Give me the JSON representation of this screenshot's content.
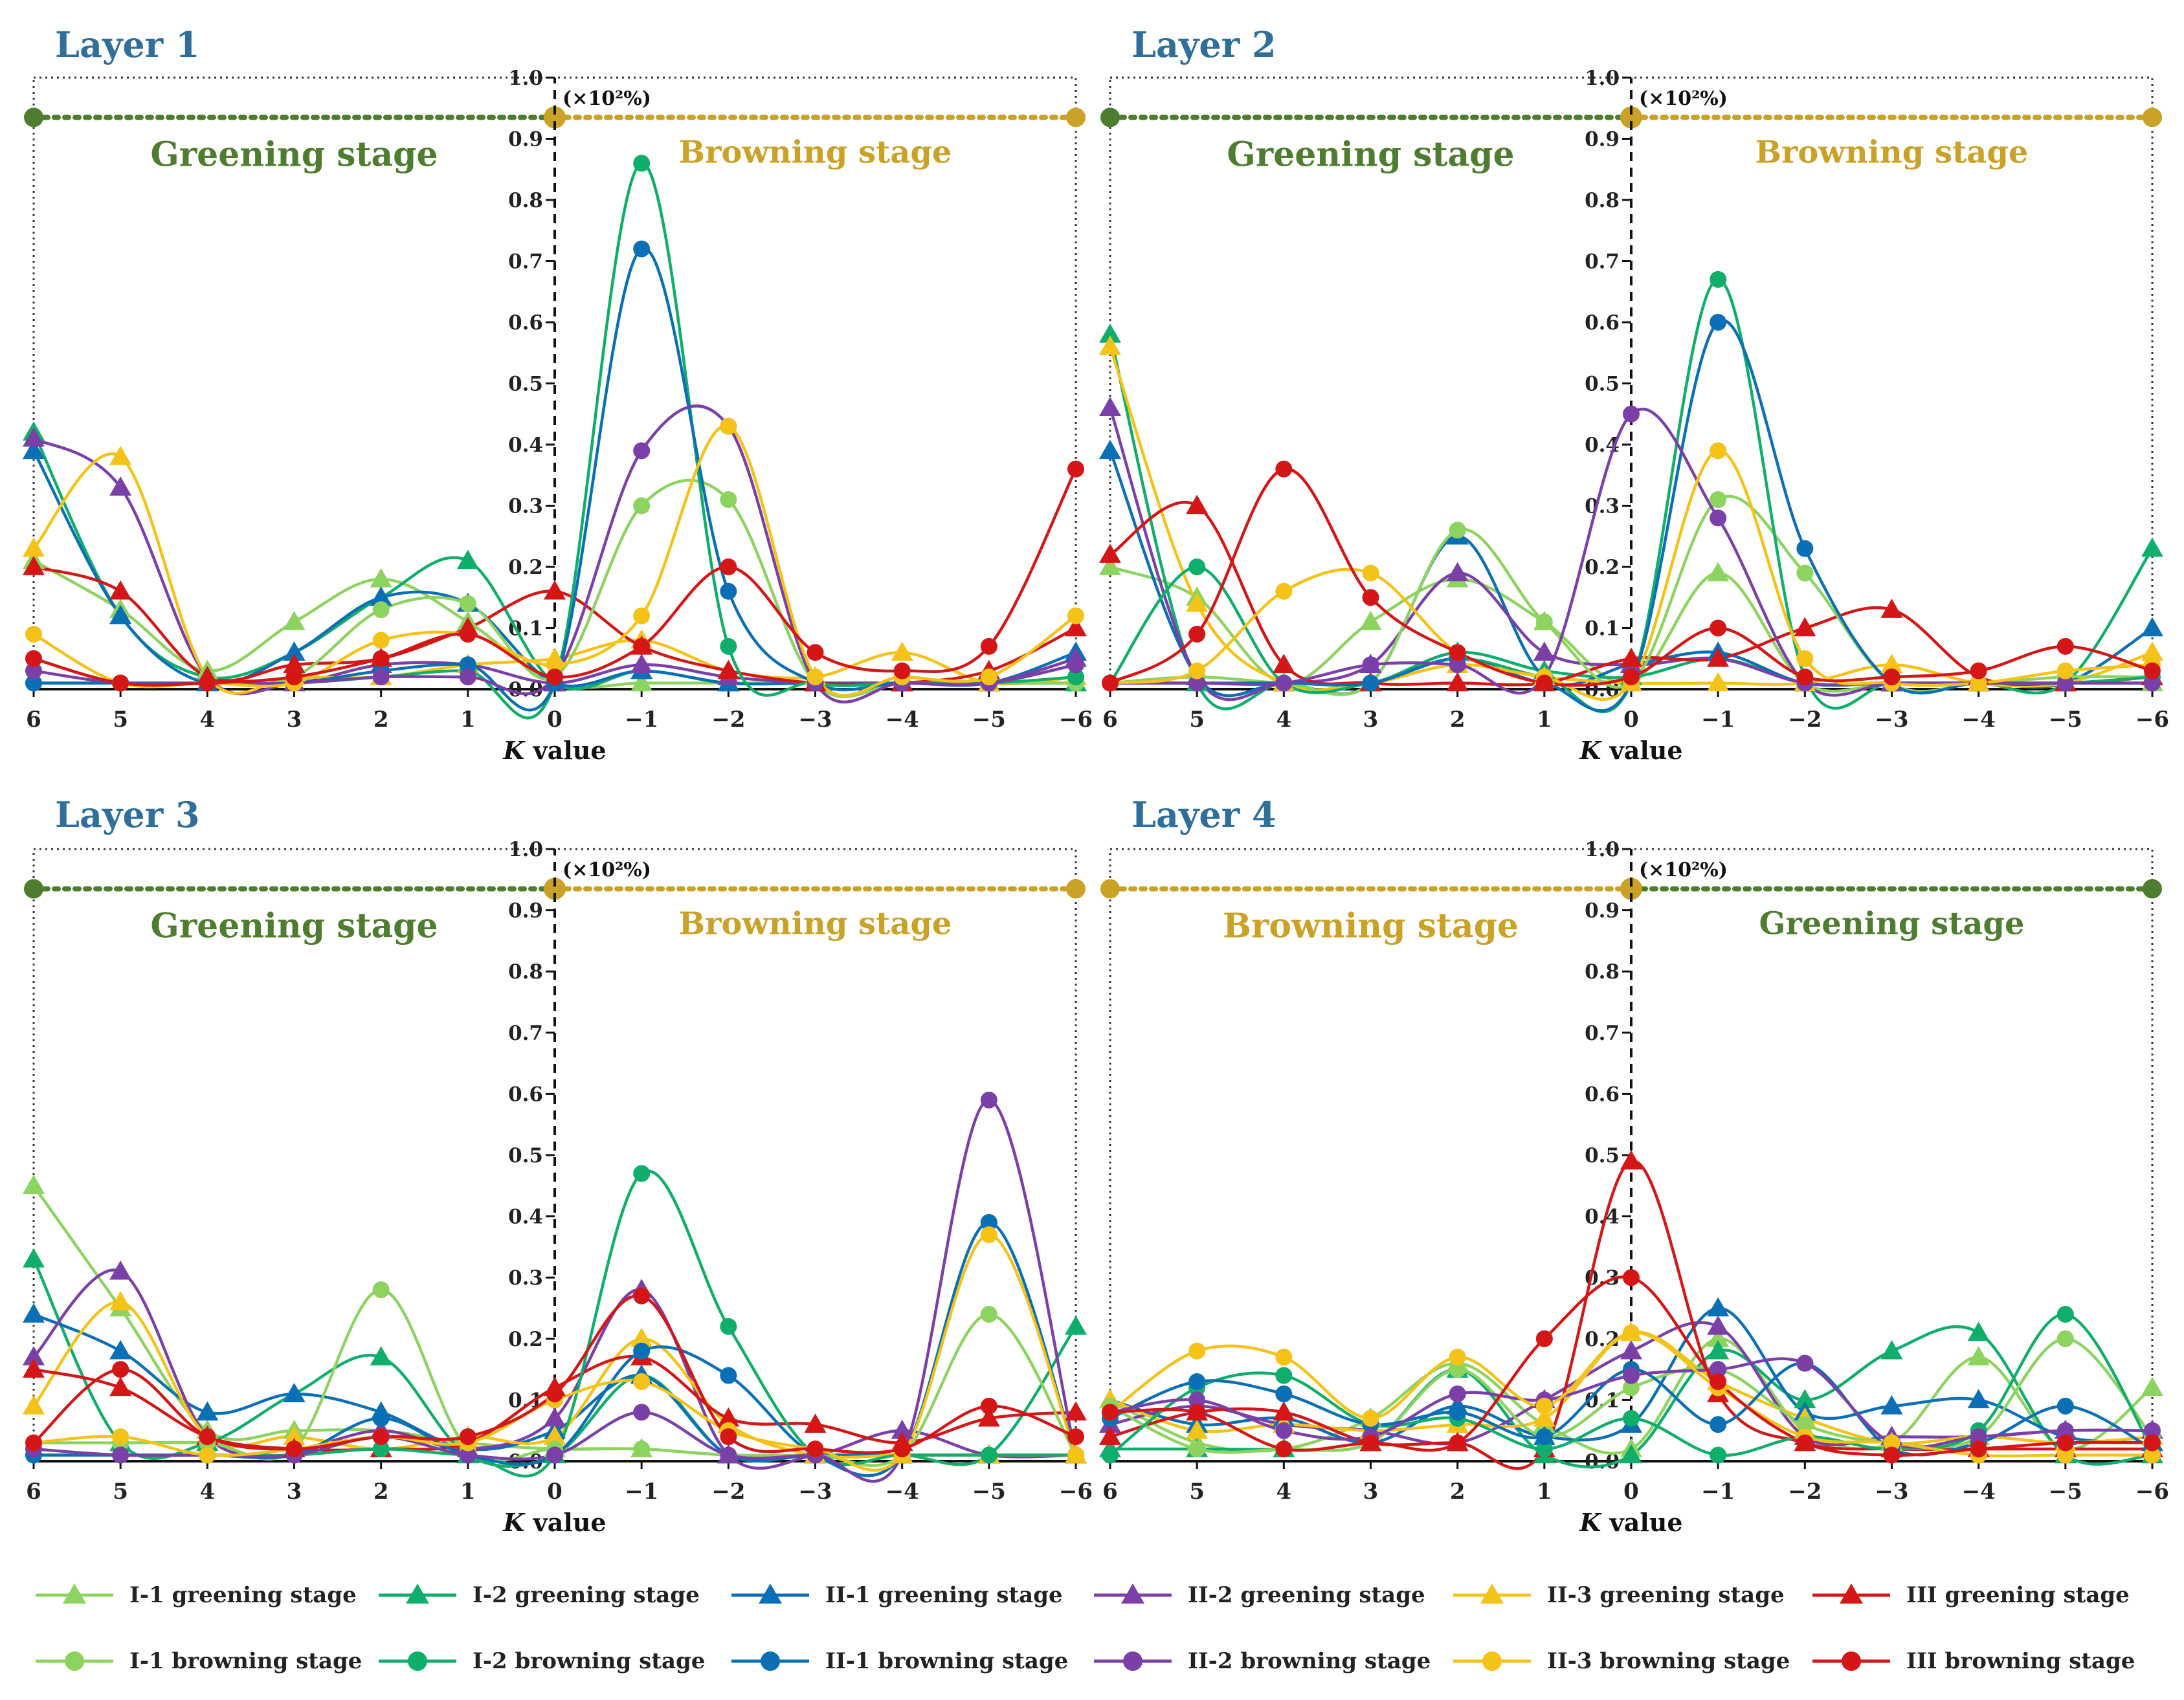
{
  "chart_data": {
    "type": "line",
    "xlabel": "K value",
    "x_ticks": [
      "6",
      "5",
      "4",
      "3",
      "2",
      "1",
      "0",
      "−1",
      "−2",
      "−3",
      "−4",
      "−5",
      "−6"
    ],
    "x_values": [
      6,
      5,
      4,
      3,
      2,
      1,
      0,
      -1,
      -2,
      -3,
      -4,
      -5,
      -6
    ],
    "y_ticks": [
      "0.0",
      "0.1",
      "0.2",
      "0.3",
      "0.4",
      "0.5",
      "0.6",
      "0.7",
      "0.8",
      "0.9",
      "1.0"
    ],
    "ylim": [
      0,
      1.0
    ],
    "y_unit": "(×10²%)",
    "series_style": [
      {
        "key": "I1g",
        "name": "I-1 greening stage",
        "color": "#8dd35f",
        "marker": "triangle"
      },
      {
        "key": "I2g",
        "name": "I-2 greening stage",
        "color": "#0fae6b",
        "marker": "triangle"
      },
      {
        "key": "II1g",
        "name": "II-1 greening stage",
        "color": "#0a6fb5",
        "marker": "triangle"
      },
      {
        "key": "II2g",
        "name": "II-2 greening stage",
        "color": "#7b3fa8",
        "marker": "triangle"
      },
      {
        "key": "II3g",
        "name": "II-3 greening stage",
        "color": "#f5c218",
        "marker": "triangle"
      },
      {
        "key": "IIIg",
        "name": "III greening stage",
        "color": "#d41616",
        "marker": "triangle"
      },
      {
        "key": "I1b",
        "name": "I-1 browning stage",
        "color": "#8dd35f",
        "marker": "circle"
      },
      {
        "key": "I2b",
        "name": "I-2 browning stage",
        "color": "#0fae6b",
        "marker": "circle"
      },
      {
        "key": "II1b",
        "name": "II-1 browning stage",
        "color": "#0a6fb5",
        "marker": "circle"
      },
      {
        "key": "II2b",
        "name": "II-2 browning stage",
        "color": "#7b3fa8",
        "marker": "circle"
      },
      {
        "key": "II3b",
        "name": "II-3 browning stage",
        "color": "#f5c218",
        "marker": "circle"
      },
      {
        "key": "IIIb",
        "name": "III browning stage",
        "color": "#d41616",
        "marker": "circle"
      }
    ],
    "panels": [
      {
        "title": "Layer 1",
        "left_stage": "Greening stage",
        "right_stage": "Browning stage",
        "left_color": "#4e7d30",
        "right_color": "#c9a227",
        "series": {
          "I1g": [
            0.21,
            0.13,
            0.03,
            0.11,
            0.18,
            0.11,
            0.01,
            0.01,
            0.01,
            0.01,
            0.01,
            0.01,
            0.01
          ],
          "I2g": [
            0.42,
            0.12,
            0.02,
            0.06,
            0.15,
            0.21,
            0.01,
            0.03,
            0.01,
            0.01,
            0.01,
            0.01,
            0.01
          ],
          "II1g": [
            0.39,
            0.12,
            0.01,
            0.06,
            0.15,
            0.14,
            0.01,
            0.03,
            0.01,
            0.01,
            0.01,
            0.01,
            0.06
          ],
          "II2g": [
            0.41,
            0.33,
            0.02,
            0.01,
            0.04,
            0.04,
            0.01,
            0.04,
            0.02,
            0.01,
            0.01,
            0.01,
            0.05
          ],
          "II3g": [
            0.23,
            0.38,
            0.02,
            0.02,
            0.02,
            0.04,
            0.05,
            0.08,
            0.03,
            0.02,
            0.06,
            0.01,
            0.02
          ],
          "IIIg": [
            0.2,
            0.16,
            0.02,
            0.04,
            0.05,
            0.1,
            0.16,
            0.07,
            0.03,
            0.01,
            0.01,
            0.03,
            0.1
          ],
          "I1b": [
            0.05,
            0.01,
            0.01,
            0.02,
            0.13,
            0.14,
            0.02,
            0.3,
            0.31,
            0.01,
            0.01,
            0.01,
            0.01
          ],
          "I2b": [
            0.01,
            0.01,
            0.01,
            0.01,
            0.02,
            0.03,
            0.01,
            0.86,
            0.07,
            0.01,
            0.01,
            0.01,
            0.02
          ],
          "II1b": [
            0.01,
            0.01,
            0.01,
            0.01,
            0.03,
            0.04,
            0.01,
            0.72,
            0.16,
            0.01,
            0.01,
            0.01,
            0.04
          ],
          "II2b": [
            0.03,
            0.01,
            0.01,
            0.01,
            0.02,
            0.02,
            0.02,
            0.39,
            0.43,
            0.01,
            0.01,
            0.01,
            0.04
          ],
          "II3b": [
            0.09,
            0.01,
            0.01,
            0.01,
            0.08,
            0.09,
            0.04,
            0.12,
            0.43,
            0.02,
            0.02,
            0.02,
            0.12
          ],
          "IIIb": [
            0.05,
            0.01,
            0.01,
            0.02,
            0.05,
            0.09,
            0.02,
            0.07,
            0.2,
            0.06,
            0.03,
            0.07,
            0.36
          ]
        }
      },
      {
        "title": "Layer 2",
        "left_stage": "Greening stage",
        "right_stage": "Browning stage",
        "left_color": "#4e7d30",
        "right_color": "#c9a227",
        "series": {
          "I1g": [
            0.2,
            0.15,
            0.01,
            0.11,
            0.18,
            0.11,
            0.01,
            0.19,
            0.01,
            0.01,
            0.01,
            0.01,
            0.01
          ],
          "I2g": [
            0.58,
            0.01,
            0.01,
            0.01,
            0.06,
            0.03,
            0.02,
            0.05,
            0.01,
            0.01,
            0.01,
            0.01,
            0.23
          ],
          "II1g": [
            0.39,
            0.02,
            0.01,
            0.01,
            0.25,
            0.02,
            0.04,
            0.06,
            0.01,
            0.01,
            0.01,
            0.01,
            0.1
          ],
          "II2g": [
            0.46,
            0.02,
            0.01,
            0.04,
            0.19,
            0.06,
            0.04,
            0.05,
            0.01,
            0.01,
            0.01,
            0.01,
            0.02
          ],
          "II3g": [
            0.56,
            0.14,
            0.01,
            0.01,
            0.04,
            0.02,
            0.01,
            0.01,
            0.01,
            0.04,
            0.01,
            0.01,
            0.06
          ],
          "IIIg": [
            0.22,
            0.3,
            0.04,
            0.01,
            0.01,
            0.01,
            0.05,
            0.05,
            0.1,
            0.13,
            0.02,
            0.01,
            0.02
          ],
          "I1b": [
            0.01,
            0.02,
            0.01,
            0.01,
            0.26,
            0.11,
            0.01,
            0.31,
            0.19,
            0.01,
            0.01,
            0.02,
            0.02
          ],
          "I2b": [
            0.01,
            0.2,
            0.01,
            0.01,
            0.05,
            0.02,
            0.01,
            0.67,
            0.02,
            0.01,
            0.01,
            0.01,
            0.02
          ],
          "II1b": [
            0.01,
            0.01,
            0.01,
            0.01,
            0.05,
            0.01,
            0.01,
            0.6,
            0.23,
            0.01,
            0.01,
            0.01,
            0.01
          ],
          "II2b": [
            0.01,
            0.01,
            0.01,
            0.04,
            0.04,
            0.02,
            0.45,
            0.28,
            0.01,
            0.01,
            0.01,
            0.01,
            0.01
          ],
          "II3b": [
            0.01,
            0.03,
            0.16,
            0.19,
            0.06,
            0.02,
            0.01,
            0.39,
            0.05,
            0.01,
            0.01,
            0.03,
            0.04
          ],
          "IIIb": [
            0.01,
            0.09,
            0.36,
            0.15,
            0.06,
            0.01,
            0.02,
            0.1,
            0.02,
            0.02,
            0.03,
            0.07,
            0.03
          ]
        }
      },
      {
        "title": "Layer 3",
        "left_stage": "Greening stage",
        "right_stage": "Browning stage",
        "left_color": "#4e7d30",
        "right_color": "#c9a227",
        "series": {
          "I1g": [
            0.45,
            0.25,
            0.05,
            0.05,
            0.05,
            0.03,
            0.02,
            0.02,
            0.01,
            0.01,
            0.01,
            0.01,
            0.01
          ],
          "I2g": [
            0.33,
            0.03,
            0.03,
            0.11,
            0.17,
            0.01,
            0.01,
            0.14,
            0.01,
            0.01,
            0.01,
            0.01,
            0.22
          ],
          "II1g": [
            0.24,
            0.18,
            0.08,
            0.11,
            0.08,
            0.02,
            0.05,
            0.14,
            0.01,
            0.01,
            0.01,
            0.01,
            0.01
          ],
          "II2g": [
            0.17,
            0.31,
            0.04,
            0.02,
            0.05,
            0.02,
            0.07,
            0.28,
            0.01,
            0.01,
            0.05,
            0.01,
            0.01
          ],
          "II3g": [
            0.09,
            0.26,
            0.04,
            0.04,
            0.02,
            0.04,
            0.04,
            0.2,
            0.06,
            0.01,
            0.01,
            0.01,
            0.01
          ],
          "IIIg": [
            0.15,
            0.12,
            0.04,
            0.02,
            0.02,
            0.03,
            0.12,
            0.17,
            0.07,
            0.06,
            0.03,
            0.07,
            0.08
          ],
          "I1b": [
            0.03,
            0.03,
            0.03,
            0.02,
            0.28,
            0.02,
            0.02,
            0.02,
            0.01,
            0.01,
            0.01,
            0.24,
            0.01
          ],
          "I2b": [
            0.01,
            0.01,
            0.01,
            0.01,
            0.02,
            0.01,
            0.01,
            0.47,
            0.22,
            0.01,
            0.01,
            0.01,
            0.01
          ],
          "II1b": [
            0.01,
            0.01,
            0.01,
            0.01,
            0.07,
            0.01,
            0.01,
            0.18,
            0.14,
            0.01,
            0.01,
            0.39,
            0.01
          ],
          "II2b": [
            0.02,
            0.01,
            0.01,
            0.01,
            0.04,
            0.01,
            0.01,
            0.08,
            0.01,
            0.01,
            0.01,
            0.59,
            0.01
          ],
          "II3b": [
            0.03,
            0.04,
            0.01,
            0.02,
            0.04,
            0.03,
            0.1,
            0.13,
            0.05,
            0.02,
            0.01,
            0.37,
            0.01
          ],
          "IIIb": [
            0.03,
            0.15,
            0.04,
            0.02,
            0.04,
            0.04,
            0.11,
            0.27,
            0.04,
            0.02,
            0.02,
            0.09,
            0.04
          ]
        }
      },
      {
        "title": "Layer 4",
        "left_stage": "Browning stage",
        "right_stage": "Greening stage",
        "left_color": "#c9a227",
        "right_color": "#4e7d30",
        "series": {
          "I1g": [
            0.1,
            0.03,
            0.02,
            0.07,
            0.16,
            0.06,
            0.02,
            0.2,
            0.05,
            0.03,
            0.17,
            0.02,
            0.12
          ],
          "I2g": [
            0.02,
            0.02,
            0.02,
            0.03,
            0.15,
            0.01,
            0.01,
            0.18,
            0.1,
            0.18,
            0.21,
            0.01,
            0.01
          ],
          "II1g": [
            0.1,
            0.06,
            0.07,
            0.03,
            0.09,
            0.04,
            0.06,
            0.25,
            0.08,
            0.09,
            0.1,
            0.04,
            0.03
          ],
          "II2g": [
            0.06,
            0.09,
            0.06,
            0.05,
            0.03,
            0.1,
            0.18,
            0.22,
            0.04,
            0.04,
            0.04,
            0.05,
            0.05
          ],
          "II3g": [
            0.1,
            0.05,
            0.06,
            0.05,
            0.06,
            0.07,
            0.21,
            0.13,
            0.07,
            0.03,
            0.04,
            0.03,
            0.04
          ],
          "IIIg": [
            0.04,
            0.08,
            0.08,
            0.03,
            0.03,
            0.02,
            0.49,
            0.11,
            0.03,
            0.02,
            0.02,
            0.02,
            0.02
          ],
          "I1b": [
            0.09,
            0.02,
            0.02,
            0.03,
            0.15,
            0.04,
            0.12,
            0.15,
            0.06,
            0.03,
            0.04,
            0.2,
            0.04
          ],
          "I2b": [
            0.01,
            0.12,
            0.14,
            0.06,
            0.07,
            0.02,
            0.07,
            0.01,
            0.04,
            0.02,
            0.05,
            0.24,
            0.02
          ],
          "II1b": [
            0.07,
            0.13,
            0.11,
            0.06,
            0.08,
            0.04,
            0.15,
            0.06,
            0.16,
            0.02,
            0.03,
            0.09,
            0.02
          ],
          "II2b": [
            0.08,
            0.1,
            0.05,
            0.04,
            0.11,
            0.1,
            0.14,
            0.15,
            0.16,
            0.03,
            0.04,
            0.05,
            0.05
          ],
          "II3b": [
            0.08,
            0.18,
            0.17,
            0.07,
            0.17,
            0.09,
            0.21,
            0.12,
            0.04,
            0.03,
            0.01,
            0.01,
            0.01
          ],
          "IIIb": [
            0.08,
            0.08,
            0.02,
            0.03,
            0.03,
            0.2,
            0.3,
            0.13,
            0.03,
            0.01,
            0.02,
            0.03,
            0.03
          ]
        }
      }
    ]
  }
}
